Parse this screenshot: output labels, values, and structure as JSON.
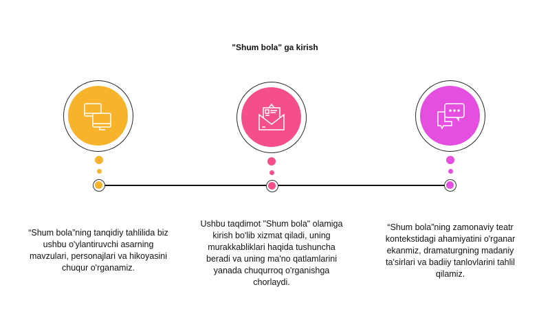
{
  "title": "\"Shum bola\" ga kirish",
  "steps": [
    {
      "icon": "monitors-icon",
      "color": "#F7B32B",
      "text": "“Shum bola”ning tanqidiy tahlilida biz ushbu o'ylantiruvchi asarning mavzulari, personajlari va hikoyasini chuqur o'rganamiz."
    },
    {
      "icon": "envelope-icon",
      "color": "#F54F8B",
      "text": "Ushbu taqdimot \"Shum bola\" olamiga kirish bo'lib xizmat qiladi, uning murakkabliklari haqida tushuncha beradi va uning ma'no qatlamlarini yanada chuqurroq o'rganishga chorlaydi."
    },
    {
      "icon": "chat-bubbles-icon",
      "color": "#E54FE0",
      "text": "“Shum bola”ning zamonaviy teatr kontekstidagi ahamiyatini o'rganar ekanmiz, dramaturgning madaniy ta'sirlari va badiiy tanlovlarini tahlil qilamiz."
    }
  ]
}
